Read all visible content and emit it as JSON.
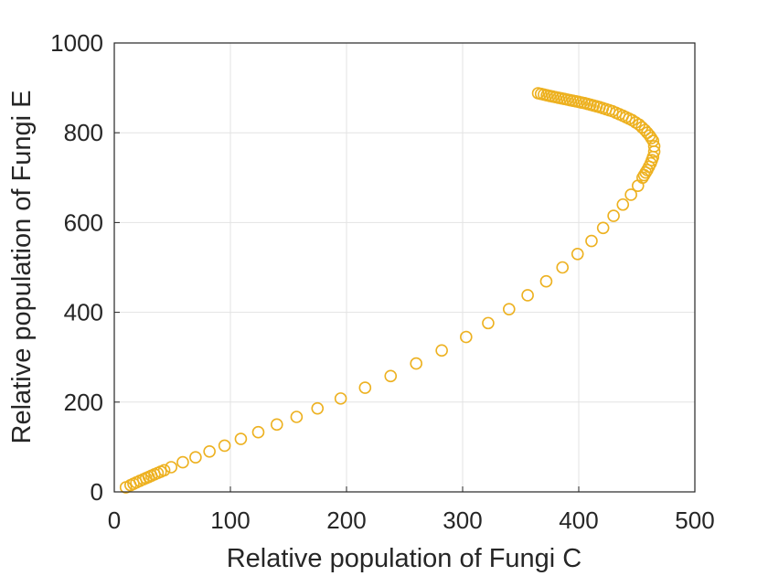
{
  "chart_data": {
    "type": "scatter",
    "xlabel": "Relative population of Fungi C",
    "ylabel": "Relative population of Fungi E",
    "xlim": [
      0,
      500
    ],
    "ylim": [
      0,
      1000
    ],
    "xticks": [
      "0",
      "100",
      "200",
      "300",
      "400",
      "500"
    ],
    "yticks": [
      "0",
      "200",
      "400",
      "600",
      "800",
      "1000"
    ],
    "grid": true,
    "marker": "open-circle",
    "series_color": "#EDB120",
    "series": [
      {
        "x": [
          10,
          14,
          19,
          25,
          32,
          40,
          49,
          59,
          70,
          82,
          95,
          109,
          124,
          140,
          157,
          175,
          195,
          216,
          238,
          260,
          282,
          303,
          322,
          340,
          356,
          372,
          386,
          399,
          411,
          421,
          430,
          438,
          445,
          451,
          455,
          459,
          462,
          464,
          465,
          465,
          464,
          461,
          457,
          452,
          446,
          438,
          429,
          418,
          405,
          390,
          375,
          365
        ],
        "y": [
          10,
          15,
          21,
          28,
          36,
          45,
          55,
          66,
          77,
          90,
          103,
          118,
          133,
          150,
          167,
          186,
          208,
          232,
          258,
          286,
          315,
          345,
          376,
          407,
          438,
          469,
          500,
          530,
          559,
          588,
          615,
          640,
          662,
          682,
          700,
          717,
          732,
          746,
          758,
          770,
          782,
          794,
          806,
          818,
          828,
          838,
          848,
          857,
          866,
          874,
          882,
          888
        ]
      }
    ]
  }
}
